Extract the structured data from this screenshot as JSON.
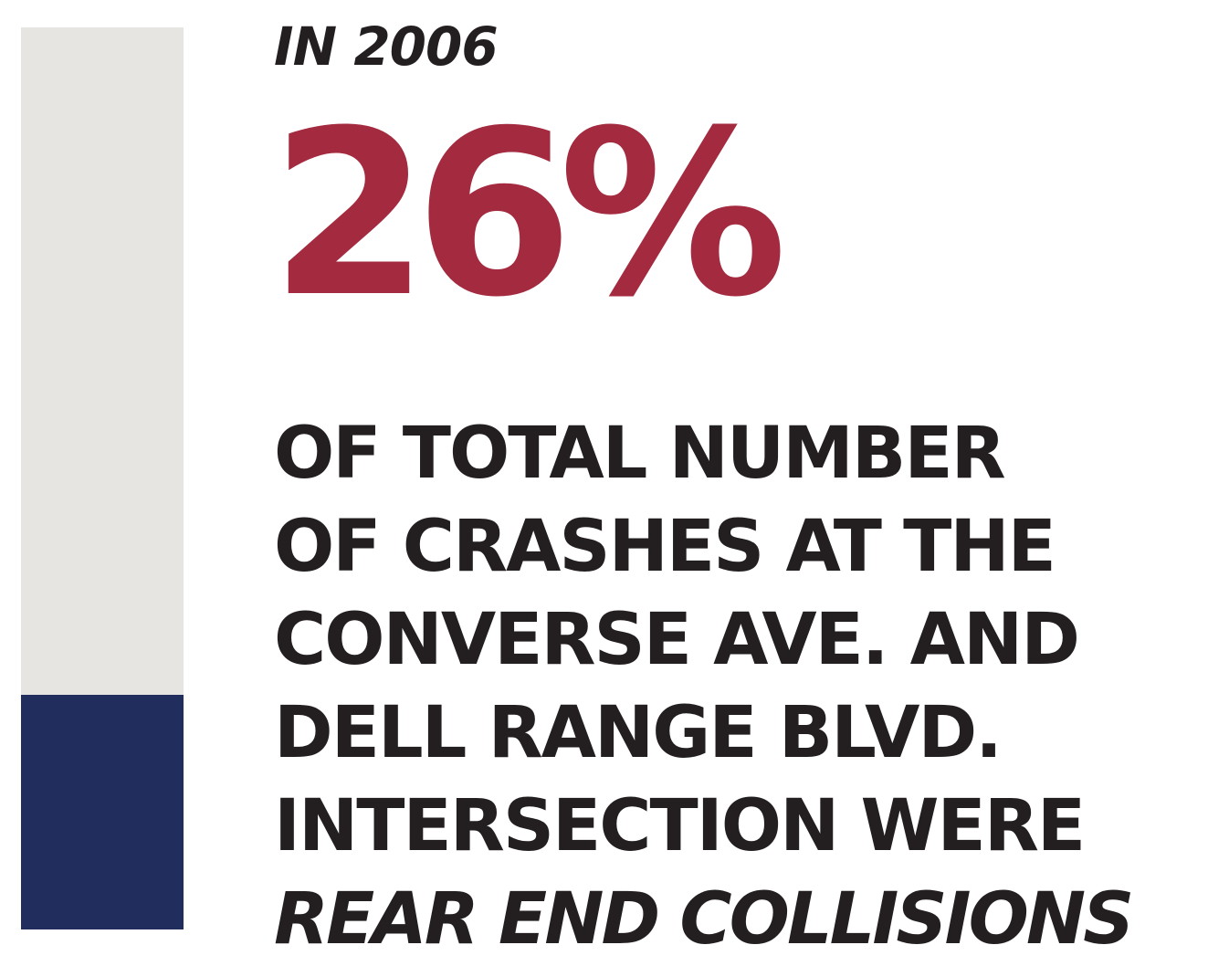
{
  "year_label": "IN 2006",
  "statistic": {
    "value_text": "26%",
    "value": 26,
    "color": "#a32a3f"
  },
  "description_lines": [
    "OF TOTAL NUMBER",
    "OF CRASHES AT THE",
    "CONVERSE AVE. AND",
    "DELL RANGE BLVD.",
    "INTERSECTION WERE"
  ],
  "description_emphasis": "REAR END COLLISIONS",
  "proportion_bar": {
    "fill_percent": 26,
    "track_color": "#e6e5e1",
    "fill_color": "#212d5c"
  }
}
